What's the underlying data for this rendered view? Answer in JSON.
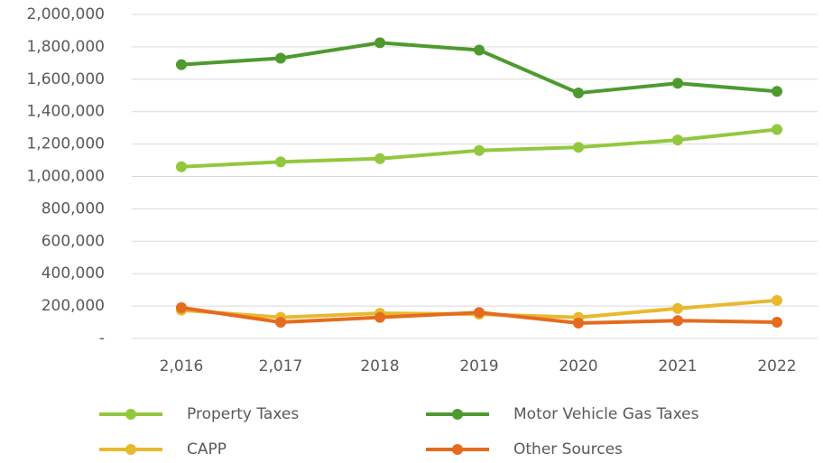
{
  "chart_data": {
    "type": "line",
    "categories": [
      "2,016",
      "2,017",
      "2018",
      "2019",
      "2020",
      "2021",
      "2022"
    ],
    "series": [
      {
        "name": "Property Taxes",
        "color": "#92c83e",
        "values": [
          1060000,
          1090000,
          1110000,
          1160000,
          1180000,
          1225000,
          1290000
        ]
      },
      {
        "name": "Motor Vehicle Gas Taxes",
        "color": "#4e9a2e",
        "values": [
          1690000,
          1730000,
          1825000,
          1780000,
          1515000,
          1575000,
          1525000
        ]
      },
      {
        "name": "CAPP",
        "color": "#e8b92e",
        "values": [
          175000,
          130000,
          155000,
          150000,
          130000,
          185000,
          235000
        ]
      },
      {
        "name": "Other Sources",
        "color": "#e46c1e",
        "values": [
          190000,
          100000,
          130000,
          160000,
          95000,
          110000,
          100000
        ]
      }
    ],
    "ylim": [
      0,
      2000000
    ],
    "yticks": [
      {
        "value": 0,
        "label": "-"
      },
      {
        "value": 200000,
        "label": "200,000"
      },
      {
        "value": 400000,
        "label": "400,000"
      },
      {
        "value": 600000,
        "label": "600,000"
      },
      {
        "value": 800000,
        "label": "800,000"
      },
      {
        "value": 1000000,
        "label": "1,000,000"
      },
      {
        "value": 1200000,
        "label": "1,200,000"
      },
      {
        "value": 1400000,
        "label": "1,400,000"
      },
      {
        "value": 1600000,
        "label": "1,600,000"
      },
      {
        "value": 1800000,
        "label": "1,800,000"
      },
      {
        "value": 2000000,
        "label": "2,000,000"
      }
    ],
    "grid": true,
    "legend": "bottom"
  }
}
